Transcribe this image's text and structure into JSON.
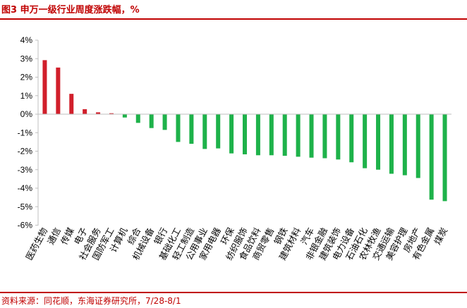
{
  "header": {
    "title": "图3  申万一级行业周度涨跌幅，%"
  },
  "footer": {
    "source": "资料来源：同花顺，东海证券研究所，7/28-8/1"
  },
  "chart_data": {
    "type": "bar",
    "title": "图3  申万一级行业周度涨跌幅，%",
    "categories": [
      "医药生物",
      "通信",
      "传媒",
      "电子",
      "社会服务",
      "国防军工",
      "计算机",
      "综合",
      "机械设备",
      "银行",
      "基础化工",
      "轻工制造",
      "公用事业",
      "家用电器",
      "环保",
      "纺织服饰",
      "食品饮料",
      "商贸零售",
      "钢铁",
      "建筑材料",
      "汽车",
      "非银金融",
      "建筑装饰",
      "电力设备",
      "石油石化",
      "农林牧渔",
      "交通运输",
      "美容护理",
      "房地产",
      "有色金属",
      "煤炭"
    ],
    "values": [
      2.92,
      2.52,
      1.1,
      0.27,
      0.1,
      0.05,
      -0.18,
      -0.47,
      -0.75,
      -0.85,
      -1.5,
      -1.6,
      -1.88,
      -1.85,
      -2.12,
      -2.17,
      -2.22,
      -2.22,
      -2.25,
      -2.3,
      -2.35,
      -2.38,
      -2.45,
      -2.6,
      -2.92,
      -3.0,
      -3.22,
      -3.3,
      -3.45,
      -4.62,
      -4.7
    ],
    "ylim": [
      -6,
      4
    ],
    "yticks": [
      "4%",
      "3%",
      "2%",
      "1%",
      "0%",
      "-1%",
      "-2%",
      "-3%",
      "-4%",
      "-5%",
      "-6%"
    ],
    "xlabel": "",
    "ylabel": "",
    "grid": false,
    "legend": "none",
    "colors": {
      "positive": "#d11f2b",
      "negative": "#1eb24a",
      "axis": "#bfbfbf",
      "accent": "#c00000"
    }
  }
}
